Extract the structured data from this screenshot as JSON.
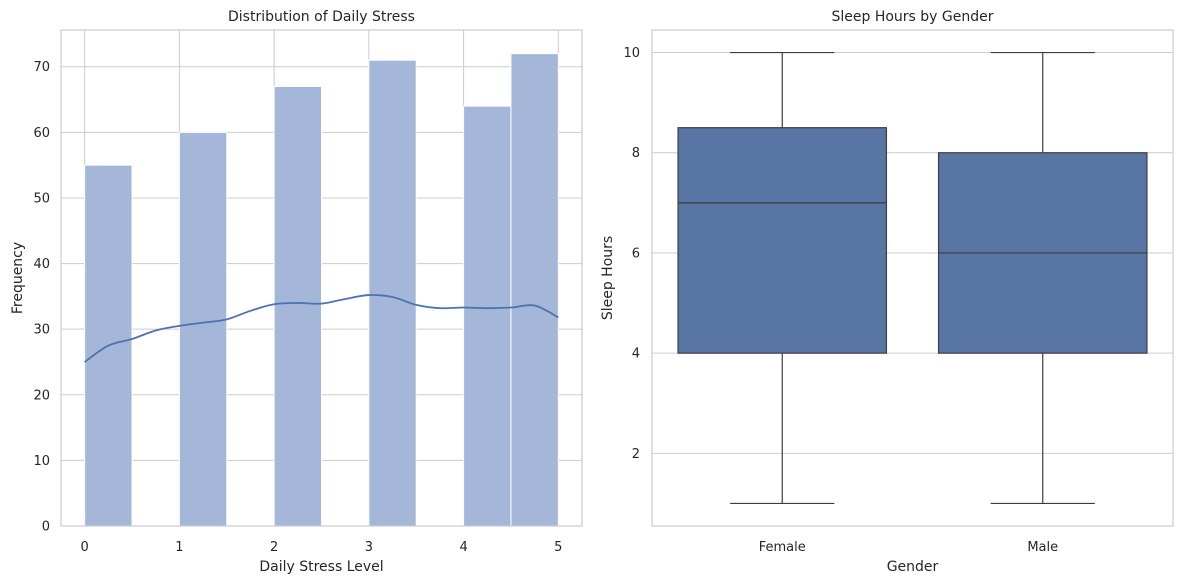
{
  "chart_data": [
    {
      "type": "histogram",
      "title": "Distribution of Daily Stress",
      "xlabel": "Daily Stress Level",
      "ylabel": "Frequency",
      "xlim": [
        -0.25,
        5.25
      ],
      "ylim": [
        0,
        75.6
      ],
      "xticks": [
        0,
        1,
        2,
        3,
        4,
        5
      ],
      "yticks": [
        0,
        10,
        20,
        30,
        40,
        50,
        60,
        70
      ],
      "grid": true,
      "bar_color": "#a4b7d8",
      "bars": [
        {
          "x0": 0.0,
          "x1": 0.5,
          "value": 55
        },
        {
          "x0": 1.0,
          "x1": 1.5,
          "value": 60
        },
        {
          "x0": 2.0,
          "x1": 2.5,
          "value": 67
        },
        {
          "x0": 3.0,
          "x1": 3.5,
          "value": 71
        },
        {
          "x0": 4.0,
          "x1": 4.5,
          "value": 64
        },
        {
          "x0": 4.5,
          "x1": 5.0,
          "value": 72
        }
      ],
      "kde_color": "#4c72b0",
      "kde": [
        {
          "x": 0.0,
          "y": 25.0
        },
        {
          "x": 0.25,
          "y": 27.5
        },
        {
          "x": 0.5,
          "y": 28.5
        },
        {
          "x": 0.75,
          "y": 29.8
        },
        {
          "x": 1.0,
          "y": 30.5
        },
        {
          "x": 1.25,
          "y": 31.0
        },
        {
          "x": 1.5,
          "y": 31.5
        },
        {
          "x": 1.75,
          "y": 32.8
        },
        {
          "x": 2.0,
          "y": 33.8
        },
        {
          "x": 2.25,
          "y": 34.0
        },
        {
          "x": 2.5,
          "y": 33.9
        },
        {
          "x": 2.75,
          "y": 34.6
        },
        {
          "x": 3.0,
          "y": 35.2
        },
        {
          "x": 3.25,
          "y": 34.9
        },
        {
          "x": 3.5,
          "y": 33.7
        },
        {
          "x": 3.75,
          "y": 33.2
        },
        {
          "x": 4.0,
          "y": 33.3
        },
        {
          "x": 4.25,
          "y": 33.2
        },
        {
          "x": 4.5,
          "y": 33.3
        },
        {
          "x": 4.75,
          "y": 33.6
        },
        {
          "x": 5.0,
          "y": 31.8
        }
      ]
    },
    {
      "type": "boxplot",
      "title": "Sleep Hours by Gender",
      "xlabel": "Gender",
      "ylabel": "Sleep Hours",
      "categories": [
        "Female",
        "Male"
      ],
      "ylim": [
        0.55,
        10.45
      ],
      "yticks": [
        2,
        4,
        6,
        8,
        10
      ],
      "grid": true,
      "box_color": "#5875a4",
      "boxes": [
        {
          "category": "Female",
          "min": 1,
          "q1": 4,
          "median": 7,
          "q3": 8.5,
          "max": 10
        },
        {
          "category": "Male",
          "min": 1,
          "q1": 4,
          "median": 6,
          "q3": 8,
          "max": 10
        }
      ]
    }
  ]
}
